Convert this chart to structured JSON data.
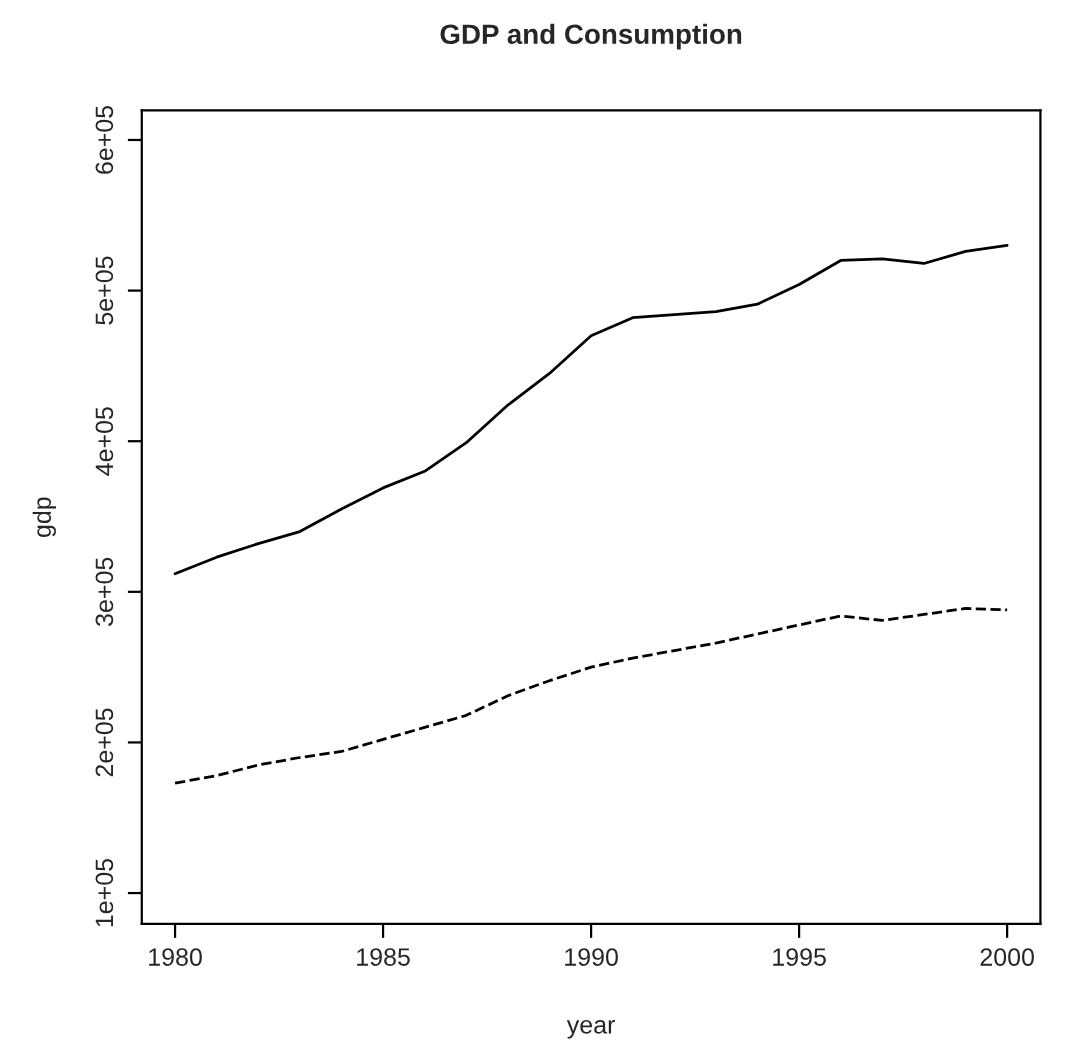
{
  "chart_data": {
    "type": "line",
    "title": "GDP and Consumption",
    "xlabel": "year",
    "ylabel": "gdp",
    "x": [
      1980,
      1981,
      1982,
      1983,
      1984,
      1985,
      1986,
      1987,
      1988,
      1989,
      1990,
      1991,
      1992,
      1993,
      1994,
      1995,
      1996,
      1997,
      1998,
      1999,
      2000
    ],
    "series": [
      {
        "color": "#000000",
        "line_style": "solid",
        "values": [
          312000,
          323000,
          332000,
          340000,
          355000,
          369000,
          380000,
          399000,
          424000,
          445000,
          470000,
          482000,
          484000,
          486000,
          491000,
          504000,
          520000,
          521000,
          518000,
          526000,
          530000
        ]
      },
      {
        "color": "#000000",
        "line_style": "dashed",
        "values": [
          173000,
          178000,
          185000,
          190000,
          194000,
          202000,
          210000,
          218000,
          231000,
          241000,
          250000,
          256000,
          261000,
          266000,
          272000,
          278000,
          284000,
          281000,
          285000,
          289000,
          288000
        ]
      }
    ],
    "xlim": [
      1979.2,
      2000.8
    ],
    "ylim": [
      79500,
      619600
    ],
    "xticks": [
      1980,
      1985,
      1990,
      1995,
      2000
    ],
    "yticks": [
      {
        "value": 100000,
        "label": "1e+05"
      },
      {
        "value": 200000,
        "label": "2e+05"
      },
      {
        "value": 300000,
        "label": "3e+05"
      },
      {
        "value": 400000,
        "label": "4e+05"
      },
      {
        "value": 500000,
        "label": "5e+05"
      },
      {
        "value": 600000,
        "label": "6e+05"
      }
    ],
    "grid": false
  }
}
